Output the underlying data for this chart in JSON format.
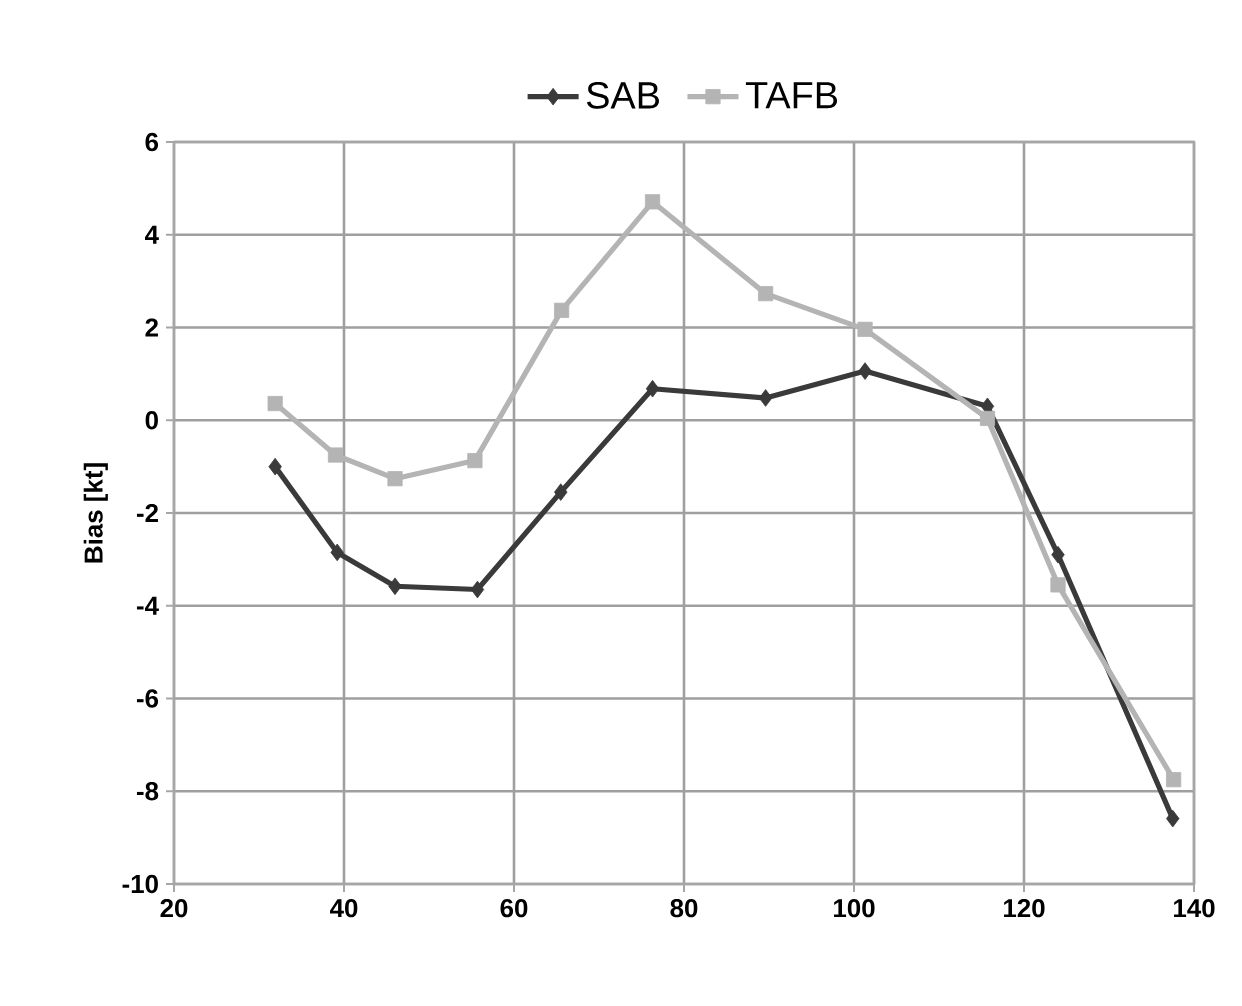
{
  "chart_data": {
    "type": "line",
    "ylabel": "Bias [kt]",
    "series": [
      {
        "name": "SAB",
        "color": "#3a3a3a",
        "marker": "diamond",
        "x": [
          31.9,
          39.2,
          46.0,
          55.7,
          65.5,
          76.3,
          89.6,
          101.3,
          115.7,
          124.0,
          137.5
        ],
        "values": [
          -1.0,
          -2.85,
          -3.58,
          -3.65,
          -1.55,
          0.68,
          0.48,
          1.06,
          0.3,
          -2.9,
          -8.59
        ]
      },
      {
        "name": "TAFB",
        "color": "#b4b4b4",
        "marker": "square",
        "x": [
          31.9,
          39.0,
          46.0,
          55.4,
          65.6,
          76.3,
          89.6,
          101.3,
          115.7,
          124.0,
          137.6
        ],
        "values": [
          0.36,
          -0.75,
          -1.26,
          -0.87,
          2.37,
          4.71,
          2.73,
          1.96,
          0.04,
          -3.55,
          -7.75
        ]
      }
    ],
    "xlim": [
      20,
      140
    ],
    "xticks": [
      20,
      40,
      60,
      80,
      100,
      120,
      140
    ],
    "ylim": [
      -10,
      6
    ],
    "yticks": [
      -10,
      -8,
      -6,
      -4,
      -2,
      0,
      2,
      4,
      6
    ],
    "grid": true,
    "legend": "top",
    "line_style": "solid"
  }
}
